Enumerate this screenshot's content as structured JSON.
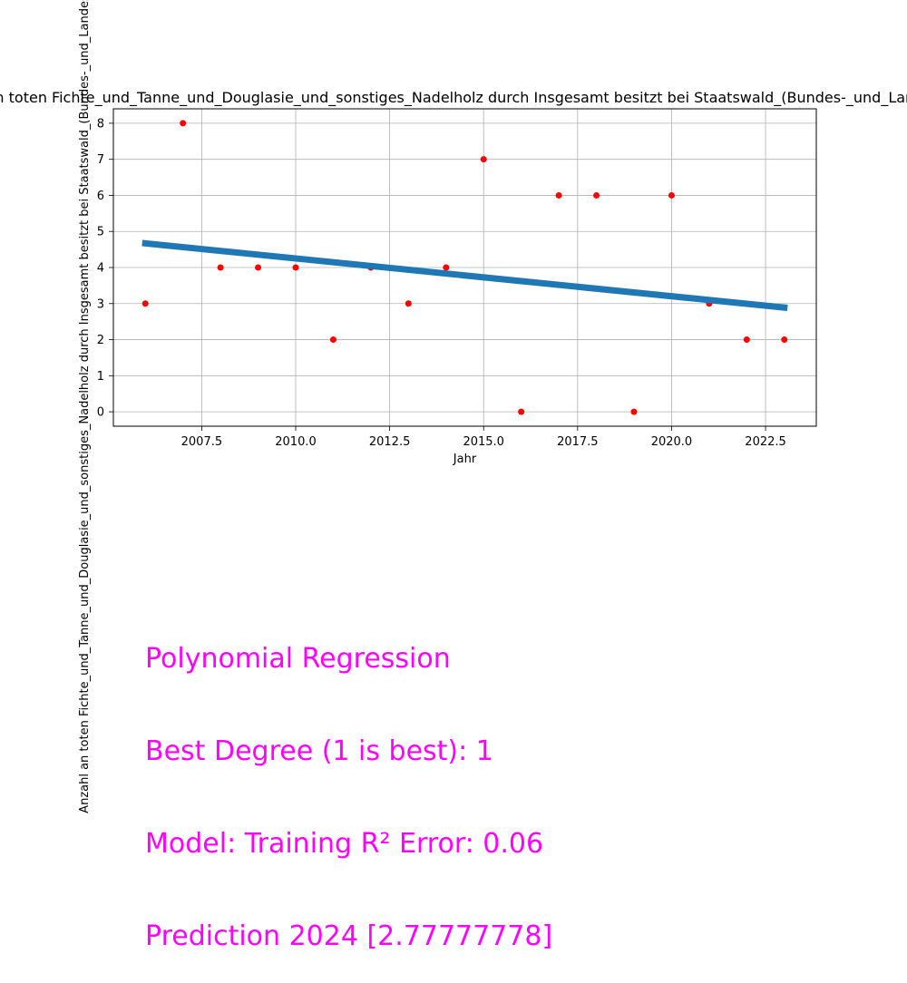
{
  "chart_data": {
    "type": "scatter",
    "title": "Anzahl an toten Fichte_und_Tanne_und_Douglasie_und_sonstiges_Nadelholz durch Insgesamt besitzt bei Staatswald_(Bundes-_und_Landesforsten)",
    "xlabel": "Jahr",
    "ylabel": "Anzahl an toten Fichte_und_Tanne_und_Douglasie_und_sonstiges_Nadelholz durch Insgesamt besitzt bei Staatswald_(Bundes-_und_Landesforsten)",
    "xlim": [
      2005.15,
      2023.85
    ],
    "ylim": [
      -0.4,
      8.4
    ],
    "xticks": [
      2007.5,
      2010.0,
      2012.5,
      2015.0,
      2017.5,
      2020.0,
      2022.5
    ],
    "xtick_labels": [
      "2007.5",
      "2010.0",
      "2012.5",
      "2015.0",
      "2017.5",
      "2020.0",
      "2022.5"
    ],
    "yticks": [
      0,
      1,
      2,
      3,
      4,
      5,
      6,
      7,
      8
    ],
    "ytick_labels": [
      "0",
      "1",
      "2",
      "3",
      "4",
      "5",
      "6",
      "7",
      "8"
    ],
    "grid": true,
    "series": [
      {
        "kind": "scatter",
        "color": "#ff0000",
        "x": [
          2006,
          2007,
          2008,
          2009,
          2010,
          2011,
          2012,
          2013,
          2014,
          2015,
          2016,
          2017,
          2018,
          2019,
          2020,
          2021,
          2022,
          2023
        ],
        "y": [
          3,
          8,
          4,
          4,
          4,
          2,
          4,
          3,
          4,
          7,
          0,
          6,
          6,
          0,
          6,
          3,
          2,
          2
        ]
      },
      {
        "kind": "line",
        "color": "#1f77b4",
        "x": [
          2006,
          2023
        ],
        "y": [
          4.67,
          2.89
        ]
      }
    ]
  },
  "annotation": {
    "color": "#ff00ff",
    "lines": [
      "Polynomial Regression",
      "Best Degree (1 is best): 1",
      "Model: Training R² Error: 0.06",
      "Prediction 2024 [2.77777778]"
    ]
  }
}
